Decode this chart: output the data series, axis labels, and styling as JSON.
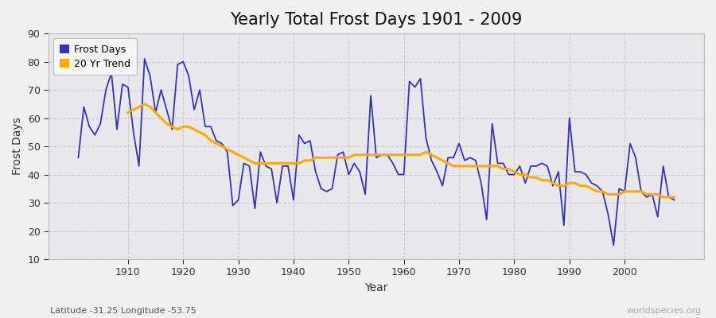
{
  "title": "Yearly Total Frost Days 1901 - 2009",
  "xlabel": "Year",
  "ylabel": "Frost Days",
  "subtitle": "Latitude -31.25 Longitude -53.75",
  "watermark": "worldspecies.org",
  "years": [
    1901,
    1902,
    1903,
    1904,
    1905,
    1906,
    1907,
    1908,
    1909,
    1910,
    1911,
    1912,
    1913,
    1914,
    1915,
    1916,
    1917,
    1918,
    1919,
    1920,
    1921,
    1922,
    1923,
    1924,
    1925,
    1926,
    1927,
    1928,
    1929,
    1930,
    1931,
    1932,
    1933,
    1934,
    1935,
    1936,
    1937,
    1938,
    1939,
    1940,
    1941,
    1942,
    1943,
    1944,
    1945,
    1946,
    1947,
    1948,
    1949,
    1950,
    1951,
    1952,
    1953,
    1954,
    1955,
    1956,
    1957,
    1958,
    1959,
    1960,
    1961,
    1962,
    1963,
    1964,
    1965,
    1966,
    1967,
    1968,
    1969,
    1970,
    1971,
    1972,
    1973,
    1974,
    1975,
    1976,
    1977,
    1978,
    1979,
    1980,
    1981,
    1982,
    1983,
    1984,
    1985,
    1986,
    1987,
    1988,
    1989,
    1990,
    1991,
    1992,
    1993,
    1994,
    1995,
    1996,
    1997,
    1998,
    1999,
    2000,
    2001,
    2002,
    2003,
    2004,
    2005,
    2006,
    2007,
    2008,
    2009
  ],
  "frost_days": [
    46,
    64,
    57,
    54,
    58,
    70,
    76,
    56,
    72,
    71,
    55,
    43,
    81,
    75,
    62,
    70,
    63,
    56,
    79,
    80,
    75,
    63,
    70,
    57,
    57,
    52,
    51,
    48,
    29,
    31,
    44,
    43,
    28,
    48,
    43,
    42,
    30,
    43,
    43,
    31,
    54,
    51,
    52,
    41,
    35,
    34,
    35,
    47,
    48,
    40,
    44,
    41,
    33,
    68,
    46,
    47,
    47,
    44,
    40,
    40,
    73,
    71,
    74,
    53,
    45,
    41,
    36,
    46,
    46,
    51,
    45,
    46,
    45,
    37,
    24,
    58,
    44,
    44,
    40,
    40,
    43,
    37,
    43,
    43,
    44,
    43,
    36,
    41,
    22,
    60,
    41,
    41,
    40,
    37,
    36,
    34,
    26,
    15,
    35,
    34,
    51,
    46,
    34,
    32,
    33,
    25,
    43,
    32,
    31
  ],
  "trend_values": [
    null,
    null,
    null,
    null,
    null,
    null,
    null,
    null,
    null,
    62,
    63,
    64,
    65,
    64,
    62,
    60,
    58,
    57,
    56,
    57,
    57,
    56,
    55,
    54,
    52,
    51,
    50,
    49,
    48,
    47,
    46,
    45,
    44,
    44,
    44,
    44,
    44,
    44,
    44,
    44,
    44,
    45,
    45,
    46,
    46,
    46,
    46,
    46,
    46,
    46,
    47,
    47,
    47,
    47,
    47,
    47,
    47,
    47,
    47,
    47,
    47,
    47,
    47,
    48,
    47,
    46,
    45,
    44,
    43,
    43,
    43,
    43,
    43,
    43,
    43,
    43,
    43,
    42,
    42,
    41,
    40,
    40,
    39,
    39,
    38,
    38,
    37,
    36,
    36,
    37,
    37,
    36,
    36,
    35,
    34,
    34,
    33,
    33,
    33,
    34,
    34,
    34,
    34,
    33,
    33,
    33,
    32,
    32,
    32
  ],
  "line_color": "#3333bb",
  "trend_color": "#ffaa00",
  "bg_color": "#f0f0f0",
  "plot_bg_color": "#e8e8ec",
  "ylim": [
    10,
    90
  ],
  "yticks": [
    10,
    20,
    30,
    40,
    50,
    60,
    70,
    80,
    90
  ],
  "xticks": [
    1910,
    1920,
    1930,
    1940,
    1950,
    1960,
    1970,
    1980,
    1990,
    2000
  ],
  "title_fontsize": 15,
  "axis_fontsize": 10,
  "tick_fontsize": 9,
  "legend_fontsize": 9
}
